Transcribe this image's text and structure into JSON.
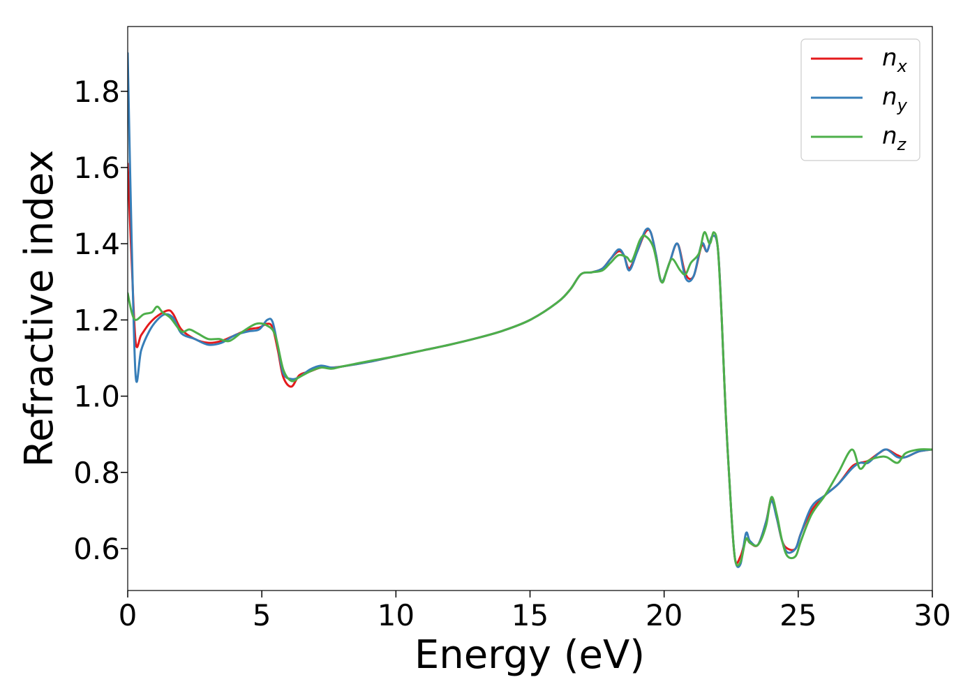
{
  "chart_data": {
    "type": "line",
    "title": "",
    "xlabel": "Energy (eV)",
    "ylabel": "Refractive index",
    "xlim": [
      0,
      30
    ],
    "ylim": [
      0.49,
      1.97
    ],
    "xticks": [
      0,
      5,
      10,
      15,
      20,
      25,
      30
    ],
    "xtick_labels": [
      "0",
      "5",
      "10",
      "15",
      "20",
      "25",
      "30"
    ],
    "yticks": [
      0.6,
      0.8,
      1.0,
      1.2,
      1.4,
      1.6,
      1.8
    ],
    "ytick_labels": [
      "0.6",
      "0.8",
      "1.0",
      "1.2",
      "1.4",
      "1.6",
      "1.8"
    ],
    "grid": false,
    "legend_position": "top-right",
    "series": [
      {
        "name": "n_x",
        "label_base": "n",
        "label_sub": "x",
        "color": "#e41a1c",
        "x": [
          0,
          0.15,
          0.3,
          0.5,
          0.8,
          1.1,
          1.5,
          1.7,
          2.0,
          2.5,
          3.0,
          3.5,
          4.0,
          4.5,
          4.9,
          5.2,
          5.4,
          5.6,
          5.8,
          6.1,
          6.4,
          6.8,
          7.2,
          7.6,
          8.0,
          9.0,
          10.0,
          11.0,
          12.0,
          13.0,
          14.0,
          15.0,
          16.0,
          16.5,
          16.9,
          17.3,
          17.7,
          18.0,
          18.3,
          18.5,
          18.7,
          19.0,
          19.3,
          19.5,
          19.7,
          19.9,
          20.2,
          20.5,
          20.8,
          21.1,
          21.4,
          21.6,
          21.8,
          22.0,
          22.15,
          22.3,
          22.5,
          22.65,
          22.85,
          23.05,
          23.2,
          23.5,
          23.8,
          24.0,
          24.2,
          24.4,
          24.6,
          24.9,
          25.1,
          25.5,
          26.0,
          26.5,
          27.0,
          27.3,
          27.6,
          28.0,
          28.3,
          28.7,
          29.0,
          29.5,
          30.0
        ],
        "y": [
          1.61,
          1.35,
          1.14,
          1.16,
          1.19,
          1.21,
          1.225,
          1.215,
          1.175,
          1.15,
          1.14,
          1.145,
          1.16,
          1.175,
          1.18,
          1.19,
          1.18,
          1.12,
          1.05,
          1.025,
          1.055,
          1.065,
          1.075,
          1.075,
          1.078,
          1.09,
          1.105,
          1.12,
          1.135,
          1.152,
          1.172,
          1.2,
          1.245,
          1.28,
          1.32,
          1.325,
          1.335,
          1.36,
          1.38,
          1.37,
          1.335,
          1.38,
          1.43,
          1.43,
          1.37,
          1.3,
          1.35,
          1.4,
          1.32,
          1.315,
          1.395,
          1.38,
          1.42,
          1.39,
          1.2,
          0.95,
          0.7,
          0.57,
          0.58,
          0.625,
          0.615,
          0.61,
          0.67,
          0.73,
          0.68,
          0.62,
          0.6,
          0.6,
          0.64,
          0.7,
          0.74,
          0.77,
          0.815,
          0.825,
          0.83,
          0.85,
          0.86,
          0.845,
          0.84,
          0.855,
          0.86
        ]
      },
      {
        "name": "n_y",
        "label_base": "n",
        "label_sub": "y",
        "color": "#377eb8",
        "x": [
          0,
          0.15,
          0.3,
          0.5,
          0.8,
          1.1,
          1.4,
          1.7,
          2.0,
          2.5,
          3.0,
          3.5,
          4.0,
          4.5,
          4.9,
          5.2,
          5.4,
          5.6,
          5.8,
          6.1,
          6.4,
          6.8,
          7.2,
          7.6,
          8.0,
          9.0,
          10.0,
          11.0,
          12.0,
          13.0,
          14.0,
          15.0,
          16.0,
          16.5,
          16.9,
          17.3,
          17.7,
          18.0,
          18.3,
          18.5,
          18.7,
          19.0,
          19.3,
          19.5,
          19.7,
          19.9,
          20.2,
          20.5,
          20.8,
          21.1,
          21.4,
          21.6,
          21.8,
          22.0,
          22.15,
          22.3,
          22.5,
          22.65,
          22.85,
          23.05,
          23.2,
          23.5,
          23.8,
          24.0,
          24.2,
          24.4,
          24.6,
          24.9,
          25.1,
          25.5,
          26.0,
          26.5,
          27.0,
          27.3,
          27.6,
          28.0,
          28.3,
          28.7,
          29.0,
          29.5,
          30.0
        ],
        "y": [
          1.9,
          1.4,
          1.05,
          1.12,
          1.17,
          1.2,
          1.215,
          1.205,
          1.165,
          1.15,
          1.135,
          1.14,
          1.16,
          1.17,
          1.175,
          1.2,
          1.195,
          1.13,
          1.06,
          1.045,
          1.05,
          1.07,
          1.08,
          1.075,
          1.078,
          1.09,
          1.105,
          1.12,
          1.135,
          1.152,
          1.172,
          1.2,
          1.245,
          1.28,
          1.32,
          1.325,
          1.335,
          1.36,
          1.385,
          1.37,
          1.33,
          1.38,
          1.435,
          1.43,
          1.37,
          1.3,
          1.35,
          1.4,
          1.31,
          1.315,
          1.4,
          1.38,
          1.42,
          1.39,
          1.2,
          0.95,
          0.7,
          0.57,
          0.56,
          0.64,
          0.62,
          0.61,
          0.67,
          0.725,
          0.68,
          0.62,
          0.59,
          0.6,
          0.64,
          0.71,
          0.74,
          0.77,
          0.81,
          0.825,
          0.825,
          0.85,
          0.86,
          0.84,
          0.84,
          0.855,
          0.86
        ]
      },
      {
        "name": "n_z",
        "label_base": "n",
        "label_sub": "z",
        "color": "#4daf4a",
        "x": [
          0,
          0.15,
          0.3,
          0.6,
          0.9,
          1.1,
          1.3,
          1.6,
          2.0,
          2.3,
          2.6,
          3.0,
          3.4,
          3.8,
          4.3,
          4.8,
          5.2,
          5.5,
          5.8,
          6.1,
          6.4,
          6.8,
          7.2,
          7.6,
          8.0,
          9.0,
          10.0,
          11.0,
          12.0,
          13.0,
          14.0,
          15.0,
          16.0,
          16.5,
          16.9,
          17.3,
          17.7,
          18.0,
          18.3,
          18.6,
          18.8,
          19.1,
          19.3,
          19.6,
          19.9,
          20.1,
          20.3,
          20.6,
          20.8,
          21.0,
          21.3,
          21.5,
          21.7,
          21.85,
          22.0,
          22.15,
          22.3,
          22.5,
          22.65,
          22.85,
          23.05,
          23.2,
          23.5,
          23.8,
          24.0,
          24.2,
          24.4,
          24.6,
          24.9,
          25.1,
          25.5,
          26.0,
          26.5,
          27.0,
          27.3,
          27.6,
          28.0,
          28.3,
          28.7,
          29.0,
          29.5,
          30.0
        ],
        "y": [
          1.27,
          1.22,
          1.2,
          1.215,
          1.22,
          1.235,
          1.22,
          1.205,
          1.17,
          1.175,
          1.165,
          1.15,
          1.15,
          1.145,
          1.17,
          1.19,
          1.185,
          1.16,
          1.07,
          1.04,
          1.05,
          1.065,
          1.075,
          1.072,
          1.078,
          1.092,
          1.105,
          1.12,
          1.135,
          1.152,
          1.172,
          1.2,
          1.245,
          1.28,
          1.32,
          1.325,
          1.33,
          1.35,
          1.37,
          1.365,
          1.355,
          1.41,
          1.42,
          1.39,
          1.3,
          1.33,
          1.36,
          1.33,
          1.32,
          1.35,
          1.375,
          1.43,
          1.4,
          1.43,
          1.39,
          1.2,
          0.95,
          0.7,
          0.57,
          0.565,
          0.625,
          0.615,
          0.61,
          0.66,
          0.735,
          0.69,
          0.62,
          0.58,
          0.58,
          0.62,
          0.69,
          0.74,
          0.8,
          0.86,
          0.81,
          0.83,
          0.84,
          0.84,
          0.825,
          0.85,
          0.86,
          0.86
        ]
      }
    ]
  }
}
